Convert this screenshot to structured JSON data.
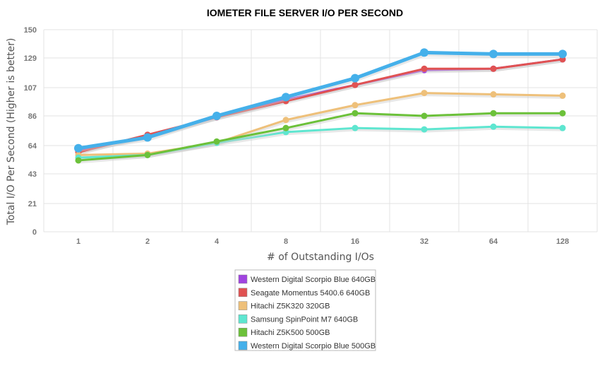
{
  "chart_data": {
    "type": "line",
    "title": "IOMETER FILE SERVER I/O PER SECOND",
    "xlabel": "# of Outstanding I/Os",
    "ylabel": "Total I/O Per Second (Higher is better)",
    "categories": [
      "1",
      "2",
      "4",
      "8",
      "16",
      "32",
      "64",
      "128"
    ],
    "y_ticks": [
      "0",
      "21",
      "43",
      "64",
      "86",
      "107",
      "129",
      "150"
    ],
    "ylim": [
      0,
      150
    ],
    "grid": true,
    "legend_position": "bottom-center",
    "series": [
      {
        "name": "Western Digital Scorpio Blue 640GB",
        "color": "#a044e0",
        "values": [
          60,
          71,
          85,
          98,
          109,
          120,
          121,
          128
        ]
      },
      {
        "name": "Seagate Momentus 5400.6 640GB",
        "color": "#e05252",
        "values": [
          59,
          72,
          85,
          97,
          109,
          121,
          121,
          128
        ]
      },
      {
        "name": "Hitachi Z5K320 320GB",
        "color": "#eec07a",
        "values": [
          57,
          58,
          66,
          83,
          94,
          103,
          102,
          101
        ]
      },
      {
        "name": "Samsung SpinPoint M7 640GB",
        "color": "#5ee6d0",
        "values": [
          55,
          57,
          66,
          74,
          77,
          76,
          78,
          77
        ]
      },
      {
        "name": "Hitachi Z5K500 500GB",
        "color": "#6cc13a",
        "values": [
          53,
          57,
          67,
          77,
          88,
          86,
          88,
          88
        ]
      },
      {
        "name": "Western Digital Scorpio Blue 500GB",
        "color": "#45b0ea",
        "values": [
          62,
          70,
          86,
          100,
          114,
          133,
          132,
          132
        ]
      }
    ]
  }
}
